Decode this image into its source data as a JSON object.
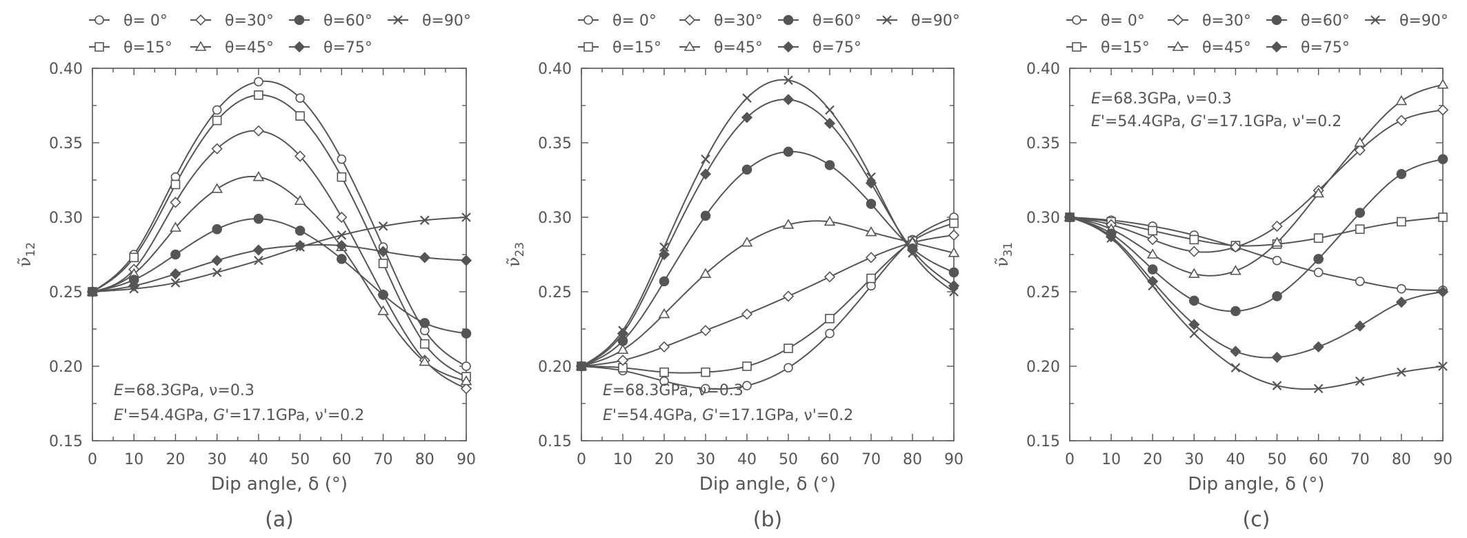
{
  "chart_data": [
    {
      "type": "line",
      "panel_label": "(a)",
      "xlabel": "Dip angle, δ (°)",
      "ylabel": "ν̃",
      "ylabel_sub": "12",
      "xlim": [
        0,
        90
      ],
      "ylim": [
        0.15,
        0.4
      ],
      "xticks": [
        0,
        10,
        20,
        30,
        40,
        50,
        60,
        70,
        80,
        90
      ],
      "yticks": [
        0.15,
        0.2,
        0.25,
        0.3,
        0.35,
        0.4
      ],
      "ytick_labels": [
        "0.15",
        "0.20",
        "0.25",
        "0.30",
        "0.35",
        "0.40"
      ],
      "grid": false,
      "legend": {
        "position": "top",
        "entries": [
          "θ= 0°",
          "θ=30°",
          "θ=60°",
          "θ=90°",
          "θ=15°",
          "θ=45°",
          "θ=75°"
        ]
      },
      "annotation": {
        "position": "bottom-left",
        "line1": {
          "E": "E",
          "E_rest": "=68.3GPa, ν=0.3"
        },
        "line2": {
          "Ep": "E'",
          "Ep_rest": "=54.4GPa, ",
          "Gp": "G'",
          "Gp_rest": "=17.1GPa, ν'=0.2"
        }
      },
      "series": [
        {
          "name": "θ= 0°",
          "marker": "circle-open",
          "x": [
            0,
            10,
            20,
            30,
            40,
            50,
            60,
            70,
            80,
            90
          ],
          "values": [
            0.25,
            0.275,
            0.327,
            0.372,
            0.391,
            0.38,
            0.339,
            0.28,
            0.224,
            0.2
          ]
        },
        {
          "name": "θ=15°",
          "marker": "square-open",
          "x": [
            0,
            10,
            20,
            30,
            40,
            50,
            60,
            70,
            80,
            90
          ],
          "values": [
            0.25,
            0.273,
            0.322,
            0.365,
            0.382,
            0.368,
            0.327,
            0.269,
            0.215,
            0.193
          ]
        },
        {
          "name": "θ=30°",
          "marker": "diamond-open",
          "x": [
            0,
            10,
            20,
            30,
            40,
            50,
            60,
            70,
            80,
            90
          ],
          "values": [
            0.25,
            0.265,
            0.31,
            0.346,
            0.358,
            0.341,
            0.3,
            0.248,
            0.204,
            0.185
          ]
        },
        {
          "name": "θ=45°",
          "marker": "triangle-open",
          "x": [
            0,
            10,
            20,
            30,
            40,
            50,
            60,
            70,
            80,
            90
          ],
          "values": [
            0.25,
            0.262,
            0.293,
            0.319,
            0.327,
            0.311,
            0.28,
            0.237,
            0.203,
            0.19
          ]
        },
        {
          "name": "θ=60°",
          "marker": "circle-filled",
          "x": [
            0,
            10,
            20,
            30,
            40,
            50,
            60,
            70,
            80,
            90
          ],
          "values": [
            0.25,
            0.258,
            0.275,
            0.292,
            0.299,
            0.291,
            0.272,
            0.248,
            0.229,
            0.222
          ]
        },
        {
          "name": "θ=75°",
          "marker": "diamond-filled",
          "x": [
            0,
            10,
            20,
            30,
            40,
            50,
            60,
            70,
            80,
            90
          ],
          "values": [
            0.25,
            0.254,
            0.262,
            0.271,
            0.278,
            0.281,
            0.281,
            0.277,
            0.273,
            0.271
          ]
        },
        {
          "name": "θ=90°",
          "marker": "x",
          "x": [
            0,
            10,
            20,
            30,
            40,
            50,
            60,
            70,
            80,
            90
          ],
          "values": [
            0.25,
            0.252,
            0.256,
            0.263,
            0.271,
            0.28,
            0.288,
            0.294,
            0.298,
            0.3
          ]
        }
      ]
    },
    {
      "type": "line",
      "panel_label": "(b)",
      "xlabel": "Dip angle, δ (°)",
      "ylabel": "ν̃",
      "ylabel_sub": "23",
      "xlim": [
        0,
        90
      ],
      "ylim": [
        0.15,
        0.4
      ],
      "xticks": [
        0,
        10,
        20,
        30,
        40,
        50,
        60,
        70,
        80,
        90
      ],
      "yticks": [
        0.15,
        0.2,
        0.25,
        0.3,
        0.35,
        0.4
      ],
      "ytick_labels": [
        "0.15",
        "0.20",
        "0.25",
        "0.30",
        "0.35",
        "0.40"
      ],
      "grid": false,
      "legend": {
        "position": "top",
        "entries": [
          "θ= 0°",
          "θ=30°",
          "θ=60°",
          "θ=90°",
          "θ=15°",
          "θ=45°",
          "θ=75°"
        ]
      },
      "annotation": {
        "position": "bottom-left",
        "line1": {
          "E": "E",
          "E_rest": "=68.3GPa, ν=0.3"
        },
        "line2": {
          "Ep": "E'",
          "Ep_rest": "=54.4GPa, ",
          "Gp": "G'",
          "Gp_rest": "=17.1GPa, ν'=0.2"
        }
      },
      "series": [
        {
          "name": "θ= 0°",
          "marker": "circle-open",
          "x": [
            0,
            10,
            20,
            30,
            40,
            50,
            60,
            70,
            80,
            90
          ],
          "values": [
            0.2,
            0.197,
            0.19,
            0.185,
            0.187,
            0.199,
            0.222,
            0.254,
            0.285,
            0.3
          ]
        },
        {
          "name": "θ=15°",
          "marker": "square-open",
          "x": [
            0,
            10,
            20,
            30,
            40,
            50,
            60,
            70,
            80,
            90
          ],
          "values": [
            0.2,
            0.199,
            0.196,
            0.196,
            0.2,
            0.212,
            0.232,
            0.259,
            0.284,
            0.296
          ]
        },
        {
          "name": "θ=30°",
          "marker": "diamond-open",
          "x": [
            0,
            10,
            20,
            30,
            40,
            50,
            60,
            70,
            80,
            90
          ],
          "values": [
            0.2,
            0.204,
            0.213,
            0.224,
            0.235,
            0.247,
            0.26,
            0.273,
            0.283,
            0.288
          ]
        },
        {
          "name": "θ=45°",
          "marker": "triangle-open",
          "x": [
            0,
            10,
            20,
            30,
            40,
            50,
            60,
            70,
            80,
            90
          ],
          "values": [
            0.2,
            0.211,
            0.235,
            0.262,
            0.283,
            0.295,
            0.297,
            0.29,
            0.283,
            0.276
          ]
        },
        {
          "name": "θ=60°",
          "marker": "circle-filled",
          "x": [
            0,
            10,
            20,
            30,
            40,
            50,
            60,
            70,
            80,
            90
          ],
          "values": [
            0.2,
            0.217,
            0.257,
            0.301,
            0.332,
            0.344,
            0.335,
            0.309,
            0.279,
            0.263
          ]
        },
        {
          "name": "θ=75°",
          "marker": "diamond-filled",
          "x": [
            0,
            10,
            20,
            30,
            40,
            50,
            60,
            70,
            80,
            90
          ],
          "values": [
            0.2,
            0.222,
            0.275,
            0.329,
            0.367,
            0.379,
            0.363,
            0.323,
            0.278,
            0.254
          ]
        },
        {
          "name": "θ=90°",
          "marker": "x",
          "x": [
            0,
            10,
            20,
            30,
            40,
            50,
            60,
            70,
            80,
            90
          ],
          "values": [
            0.2,
            0.224,
            0.28,
            0.339,
            0.38,
            0.392,
            0.372,
            0.327,
            0.276,
            0.25
          ]
        }
      ]
    },
    {
      "type": "line",
      "panel_label": "(c)",
      "xlabel": "Dip angle, δ (°)",
      "ylabel": "ν̃",
      "ylabel_sub": "31",
      "xlim": [
        0,
        90
      ],
      "ylim": [
        0.15,
        0.4
      ],
      "xticks": [
        0,
        10,
        20,
        30,
        40,
        50,
        60,
        70,
        80,
        90
      ],
      "yticks": [
        0.15,
        0.2,
        0.25,
        0.3,
        0.35,
        0.4
      ],
      "ytick_labels": [
        "0.15",
        "0.20",
        "0.25",
        "0.30",
        "0.35",
        "0.40"
      ],
      "grid": false,
      "legend": {
        "position": "top",
        "entries": [
          "θ= 0°",
          "θ=30°",
          "θ=60°",
          "θ=90°",
          "θ=15°",
          "θ=45°",
          "θ=75°"
        ]
      },
      "annotation": {
        "position": "top-left",
        "line1": {
          "E": "E",
          "E_rest": "=68.3GPa, ν=0.3"
        },
        "line2": {
          "Ep": "E'",
          "Ep_rest": "=54.4GPa, ",
          "Gp": "G'",
          "Gp_rest": "=17.1GPa, ν'=0.2"
        }
      },
      "series": [
        {
          "name": "θ= 0°",
          "marker": "circle-open",
          "x": [
            0,
            10,
            20,
            30,
            40,
            50,
            60,
            70,
            80,
            90
          ],
          "values": [
            0.3,
            0.298,
            0.294,
            0.288,
            0.28,
            0.271,
            0.263,
            0.257,
            0.252,
            0.251
          ]
        },
        {
          "name": "θ=15°",
          "marker": "square-open",
          "x": [
            0,
            10,
            20,
            30,
            40,
            50,
            60,
            70,
            80,
            90
          ],
          "values": [
            0.3,
            0.297,
            0.291,
            0.285,
            0.281,
            0.282,
            0.286,
            0.292,
            0.297,
            0.3
          ]
        },
        {
          "name": "θ=30°",
          "marker": "diamond-open",
          "x": [
            0,
            10,
            20,
            30,
            40,
            50,
            60,
            70,
            80,
            90
          ],
          "values": [
            0.3,
            0.295,
            0.285,
            0.277,
            0.28,
            0.294,
            0.318,
            0.345,
            0.365,
            0.372
          ]
        },
        {
          "name": "θ=45°",
          "marker": "triangle-open",
          "x": [
            0,
            10,
            20,
            30,
            40,
            50,
            60,
            70,
            80,
            90
          ],
          "values": [
            0.3,
            0.292,
            0.275,
            0.262,
            0.264,
            0.283,
            0.316,
            0.35,
            0.378,
            0.389
          ]
        },
        {
          "name": "θ=60°",
          "marker": "circle-filled",
          "x": [
            0,
            10,
            20,
            30,
            40,
            50,
            60,
            70,
            80,
            90
          ],
          "values": [
            0.3,
            0.289,
            0.265,
            0.244,
            0.237,
            0.247,
            0.272,
            0.303,
            0.329,
            0.339
          ]
        },
        {
          "name": "θ=75°",
          "marker": "diamond-filled",
          "x": [
            0,
            10,
            20,
            30,
            40,
            50,
            60,
            70,
            80,
            90
          ],
          "values": [
            0.3,
            0.287,
            0.257,
            0.228,
            0.21,
            0.206,
            0.213,
            0.227,
            0.243,
            0.25
          ]
        },
        {
          "name": "θ=90°",
          "marker": "x",
          "x": [
            0,
            10,
            20,
            30,
            40,
            50,
            60,
            70,
            80,
            90
          ],
          "values": [
            0.3,
            0.286,
            0.254,
            0.222,
            0.199,
            0.187,
            0.185,
            0.19,
            0.196,
            0.2
          ]
        }
      ]
    }
  ],
  "style": {
    "ink": "#555555",
    "background": "#ffffff"
  }
}
